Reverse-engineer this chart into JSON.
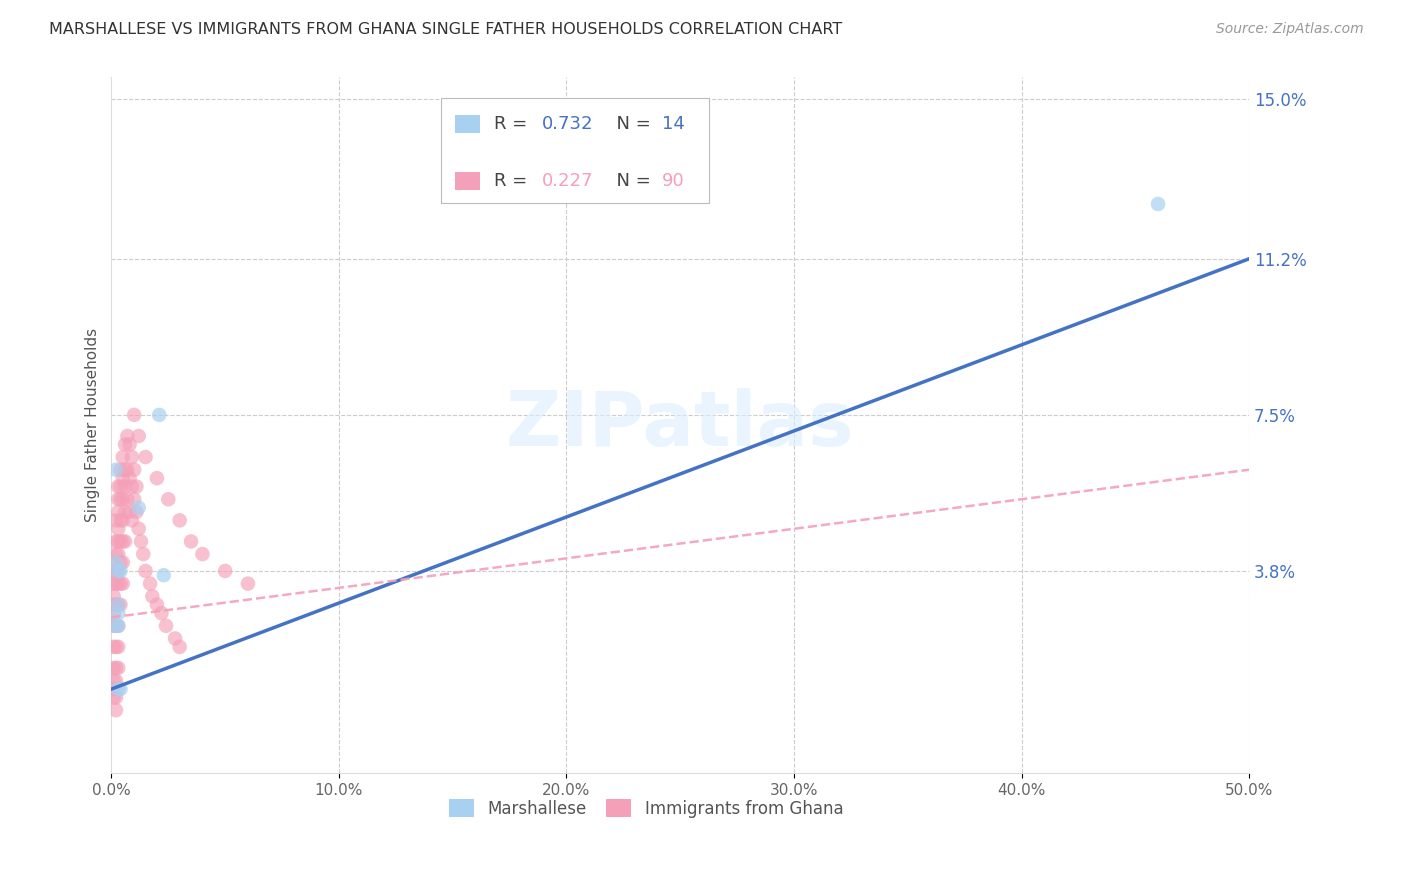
{
  "title": "MARSHALLESE VS IMMIGRANTS FROM GHANA SINGLE FATHER HOUSEHOLDS CORRELATION CHART",
  "source": "Source: ZipAtlas.com",
  "ylabel": "Single Father Households",
  "xlim": [
    0.0,
    0.5
  ],
  "ylim": [
    -0.01,
    0.155
  ],
  "xticks": [
    0.0,
    0.1,
    0.2,
    0.3,
    0.4,
    0.5
  ],
  "xtick_labels": [
    "0.0%",
    "10.0%",
    "20.0%",
    "30.0%",
    "40.0%",
    "50.0%"
  ],
  "ytick_vals_right": [
    0.038,
    0.075,
    0.112,
    0.15
  ],
  "ytick_labels_right": [
    "3.8%",
    "7.5%",
    "11.2%",
    "15.0%"
  ],
  "grid_color": "#cccccc",
  "background_color": "#ffffff",
  "marshallese_color": "#a8d0f0",
  "ghana_color": "#f4a0b8",
  "trend_blue_color": "#4472c4",
  "trend_pink_color": "#f4a0b8",
  "legend_R_blue": "R = 0.732",
  "legend_N_blue": "N = 14",
  "legend_R_pink": "R = 0.227",
  "legend_N_pink": "N = 90",
  "legend_label_blue": "Marshallese",
  "legend_label_pink": "Immigrants from Ghana",
  "watermark": "ZIPatlas",
  "marshallese_x": [
    0.003,
    0.002,
    0.004,
    0.003,
    0.002,
    0.003,
    0.002,
    0.003,
    0.004,
    0.003,
    0.021,
    0.012,
    0.023,
    0.46
  ],
  "marshallese_y": [
    0.038,
    0.062,
    0.038,
    0.03,
    0.04,
    0.028,
    0.025,
    0.025,
    0.01,
    0.01,
    0.075,
    0.053,
    0.037,
    0.125
  ],
  "ghana_x": [
    0.001,
    0.001,
    0.001,
    0.001,
    0.001,
    0.001,
    0.001,
    0.001,
    0.001,
    0.001,
    0.001,
    0.001,
    0.002,
    0.002,
    0.002,
    0.002,
    0.002,
    0.002,
    0.002,
    0.002,
    0.002,
    0.002,
    0.002,
    0.002,
    0.003,
    0.003,
    0.003,
    0.003,
    0.003,
    0.003,
    0.003,
    0.003,
    0.003,
    0.003,
    0.003,
    0.003,
    0.004,
    0.004,
    0.004,
    0.004,
    0.004,
    0.004,
    0.004,
    0.004,
    0.005,
    0.005,
    0.005,
    0.005,
    0.005,
    0.005,
    0.005,
    0.006,
    0.006,
    0.006,
    0.006,
    0.006,
    0.007,
    0.007,
    0.007,
    0.008,
    0.008,
    0.008,
    0.009,
    0.009,
    0.009,
    0.01,
    0.01,
    0.011,
    0.011,
    0.012,
    0.013,
    0.014,
    0.015,
    0.017,
    0.018,
    0.02,
    0.022,
    0.024,
    0.028,
    0.03,
    0.01,
    0.012,
    0.015,
    0.02,
    0.025,
    0.03,
    0.035,
    0.04,
    0.05,
    0.06
  ],
  "ghana_y": [
    0.04,
    0.035,
    0.038,
    0.03,
    0.025,
    0.028,
    0.032,
    0.02,
    0.015,
    0.012,
    0.01,
    0.008,
    0.05,
    0.045,
    0.042,
    0.038,
    0.035,
    0.03,
    0.025,
    0.02,
    0.015,
    0.012,
    0.008,
    0.005,
    0.058,
    0.055,
    0.052,
    0.048,
    0.045,
    0.042,
    0.038,
    0.035,
    0.03,
    0.025,
    0.02,
    0.015,
    0.062,
    0.058,
    0.055,
    0.05,
    0.045,
    0.04,
    0.035,
    0.03,
    0.065,
    0.06,
    0.055,
    0.05,
    0.045,
    0.04,
    0.035,
    0.068,
    0.062,
    0.058,
    0.052,
    0.045,
    0.07,
    0.062,
    0.055,
    0.068,
    0.06,
    0.052,
    0.065,
    0.058,
    0.05,
    0.062,
    0.055,
    0.058,
    0.052,
    0.048,
    0.045,
    0.042,
    0.038,
    0.035,
    0.032,
    0.03,
    0.028,
    0.025,
    0.022,
    0.02,
    0.075,
    0.07,
    0.065,
    0.06,
    0.055,
    0.05,
    0.045,
    0.042,
    0.038,
    0.035
  ],
  "blue_line_x": [
    0.0,
    0.5
  ],
  "blue_line_y": [
    0.01,
    0.112
  ],
  "pink_line_x": [
    0.0,
    0.5
  ],
  "pink_line_y": [
    0.027,
    0.062
  ]
}
